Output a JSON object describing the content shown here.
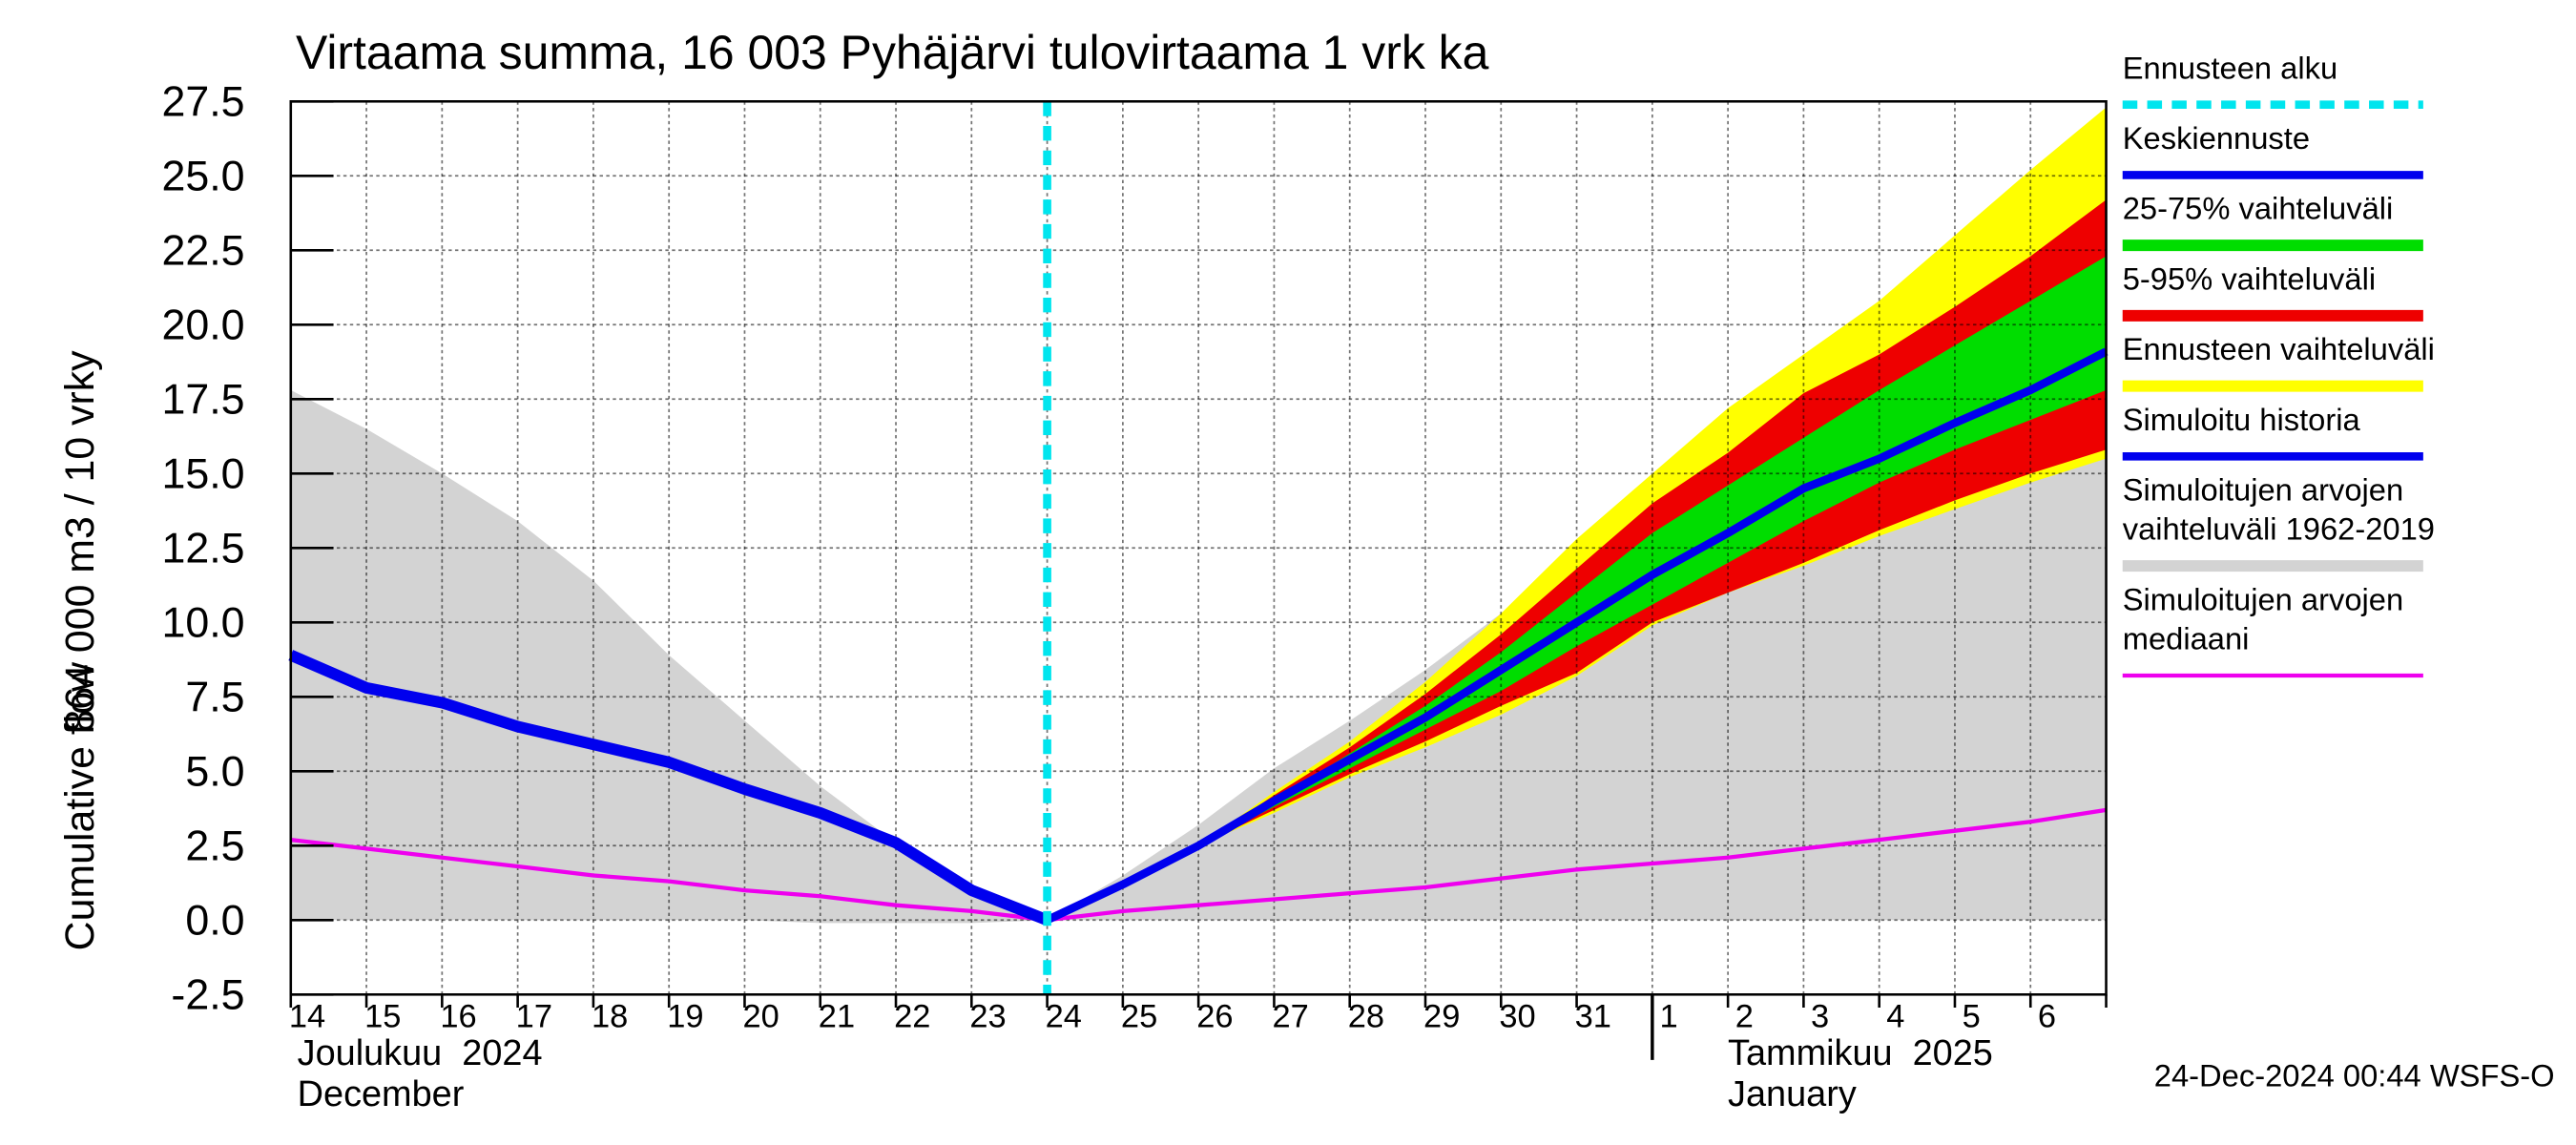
{
  "chart_data": {
    "type": "line",
    "title": "Virtaama summa, 16 003 Pyhäjärvi tulovirtaama 1 vrk ka",
    "y_label": [
      "864 000 m3 / 10 vrky",
      "Cumulative flow"
    ],
    "categories": [
      "14",
      "15",
      "16",
      "17",
      "18",
      "19",
      "20",
      "21",
      "22",
      "23",
      "24",
      "25",
      "26",
      "27",
      "28",
      "29",
      "30",
      "31",
      "1",
      "2",
      "3",
      "4",
      "5",
      "6",
      null
    ],
    "month_labels": [
      {
        "index": 0,
        "lines": [
          "Joulukuu  2024",
          "December"
        ]
      },
      {
        "index": 18,
        "lines": [
          "Tammikuu  2025",
          "January"
        ]
      }
    ],
    "ylim": [
      -2.5,
      27.5
    ],
    "yticks": [
      -2.5,
      {
        "value": 0,
        "label": "0.0"
      },
      2.5,
      {
        "value": 5,
        "label": "5.0"
      },
      7.5,
      {
        "value": 10,
        "label": "10.0"
      },
      12.5,
      {
        "value": 15,
        "label": "15.0"
      },
      17.5,
      {
        "value": 20,
        "label": "20.0"
      },
      22.5,
      {
        "value": 25,
        "label": "25.0"
      },
      27.5
    ],
    "grid": true,
    "forecast_start": {
      "name": "Ennusteen alku",
      "color": "#00e5ee",
      "x": 10
    },
    "series": [
      {
        "name": "Keskiennuste",
        "kind": "line",
        "color": "#0000ee",
        "width": 5,
        "values": [
          null,
          null,
          null,
          null,
          null,
          null,
          null,
          null,
          null,
          null,
          0,
          1.2,
          2.5,
          4.0,
          5.4,
          6.8,
          8.4,
          10.0,
          11.6,
          13.0,
          14.5,
          15.5,
          16.7,
          17.8,
          19.1
        ]
      },
      {
        "name": "25-75% vaihteluväli",
        "kind": "band",
        "color": "#00dd00",
        "values": [
          null,
          null,
          null,
          null,
          null,
          null,
          null,
          null,
          null,
          null,
          0,
          1.2,
          2.5,
          4.0,
          5.6,
          7.2,
          9.0,
          11.0,
          13.0,
          14.6,
          16.2,
          17.8,
          19.3,
          20.8,
          22.3
        ],
        "lower": [
          null,
          null,
          null,
          null,
          null,
          null,
          null,
          null,
          null,
          null,
          0,
          1.2,
          2.5,
          3.8,
          5.1,
          6.4,
          7.7,
          9.2,
          10.6,
          12.0,
          13.4,
          14.7,
          15.8,
          16.8,
          17.8
        ]
      },
      {
        "name": "5-95% vaihteluväli",
        "kind": "band",
        "color": "#ee0000",
        "values": [
          null,
          null,
          null,
          null,
          null,
          null,
          null,
          null,
          null,
          null,
          0,
          1.2,
          2.5,
          4.2,
          5.8,
          7.6,
          9.6,
          11.8,
          14.0,
          15.7,
          17.7,
          19.0,
          20.6,
          22.3,
          24.2
        ],
        "lower": [
          null,
          null,
          null,
          null,
          null,
          null,
          null,
          null,
          null,
          null,
          0,
          1.2,
          2.5,
          3.7,
          4.9,
          6.0,
          7.2,
          8.3,
          10.0,
          11.0,
          12.0,
          13.1,
          14.1,
          15.0,
          15.8
        ]
      },
      {
        "name": "Ennusteen vaihteluväli",
        "kind": "band",
        "color": "#ffff00",
        "values": [
          null,
          null,
          null,
          null,
          null,
          null,
          null,
          null,
          null,
          null,
          0,
          1.2,
          2.5,
          4.3,
          6.0,
          8.0,
          10.3,
          12.8,
          15.0,
          17.2,
          19.0,
          20.8,
          23.0,
          25.2,
          27.3
        ],
        "lower": [
          null,
          null,
          null,
          null,
          null,
          null,
          null,
          null,
          null,
          null,
          0,
          1.2,
          2.5,
          3.6,
          4.8,
          5.8,
          6.9,
          8.2,
          9.9,
          11.0,
          11.9,
          12.9,
          13.8,
          14.7,
          15.5
        ]
      },
      {
        "name": "Simuloitu historia",
        "kind": "line",
        "color": "#0000ee",
        "width": 7,
        "values": [
          8.9,
          7.8,
          7.3,
          6.5,
          5.9,
          5.3,
          4.4,
          3.6,
          2.6,
          1.0,
          0,
          null,
          null,
          null,
          null,
          null,
          null,
          null,
          null,
          null,
          null,
          null,
          null,
          null,
          null
        ]
      },
      {
        "name": "Simuloitujen arvojen\nvaihteluväli 1962-2019",
        "kind": "band",
        "color": "#d3d3d3",
        "values": [
          17.8,
          16.5,
          15.0,
          13.4,
          11.4,
          8.9,
          6.7,
          4.5,
          2.6,
          1.0,
          0,
          1.5,
          3.2,
          5.1,
          6.7,
          8.4,
          10.3,
          11.7,
          13.3,
          15.2,
          16.9,
          18.3,
          19.6,
          20.7,
          21.8
        ],
        "lower": [
          0,
          0,
          0,
          0,
          0,
          0,
          0,
          -0.1,
          -0.1,
          -0.1,
          0,
          0,
          0,
          0,
          0,
          0,
          0,
          0,
          0,
          0,
          0,
          0,
          0,
          0,
          0
        ]
      },
      {
        "name": "Simuloitujen arvojen\nmediaani",
        "kind": "line",
        "color": "#ee00ee",
        "width": 2.5,
        "values": [
          2.7,
          2.4,
          2.1,
          1.8,
          1.5,
          1.3,
          1.0,
          0.8,
          0.5,
          0.3,
          0,
          0.3,
          0.5,
          0.7,
          0.9,
          1.1,
          1.4,
          1.7,
          1.9,
          2.1,
          2.4,
          2.7,
          3.0,
          3.3,
          3.7
        ]
      }
    ],
    "footer": "24-Dec-2024 00:44 WSFS-O"
  }
}
